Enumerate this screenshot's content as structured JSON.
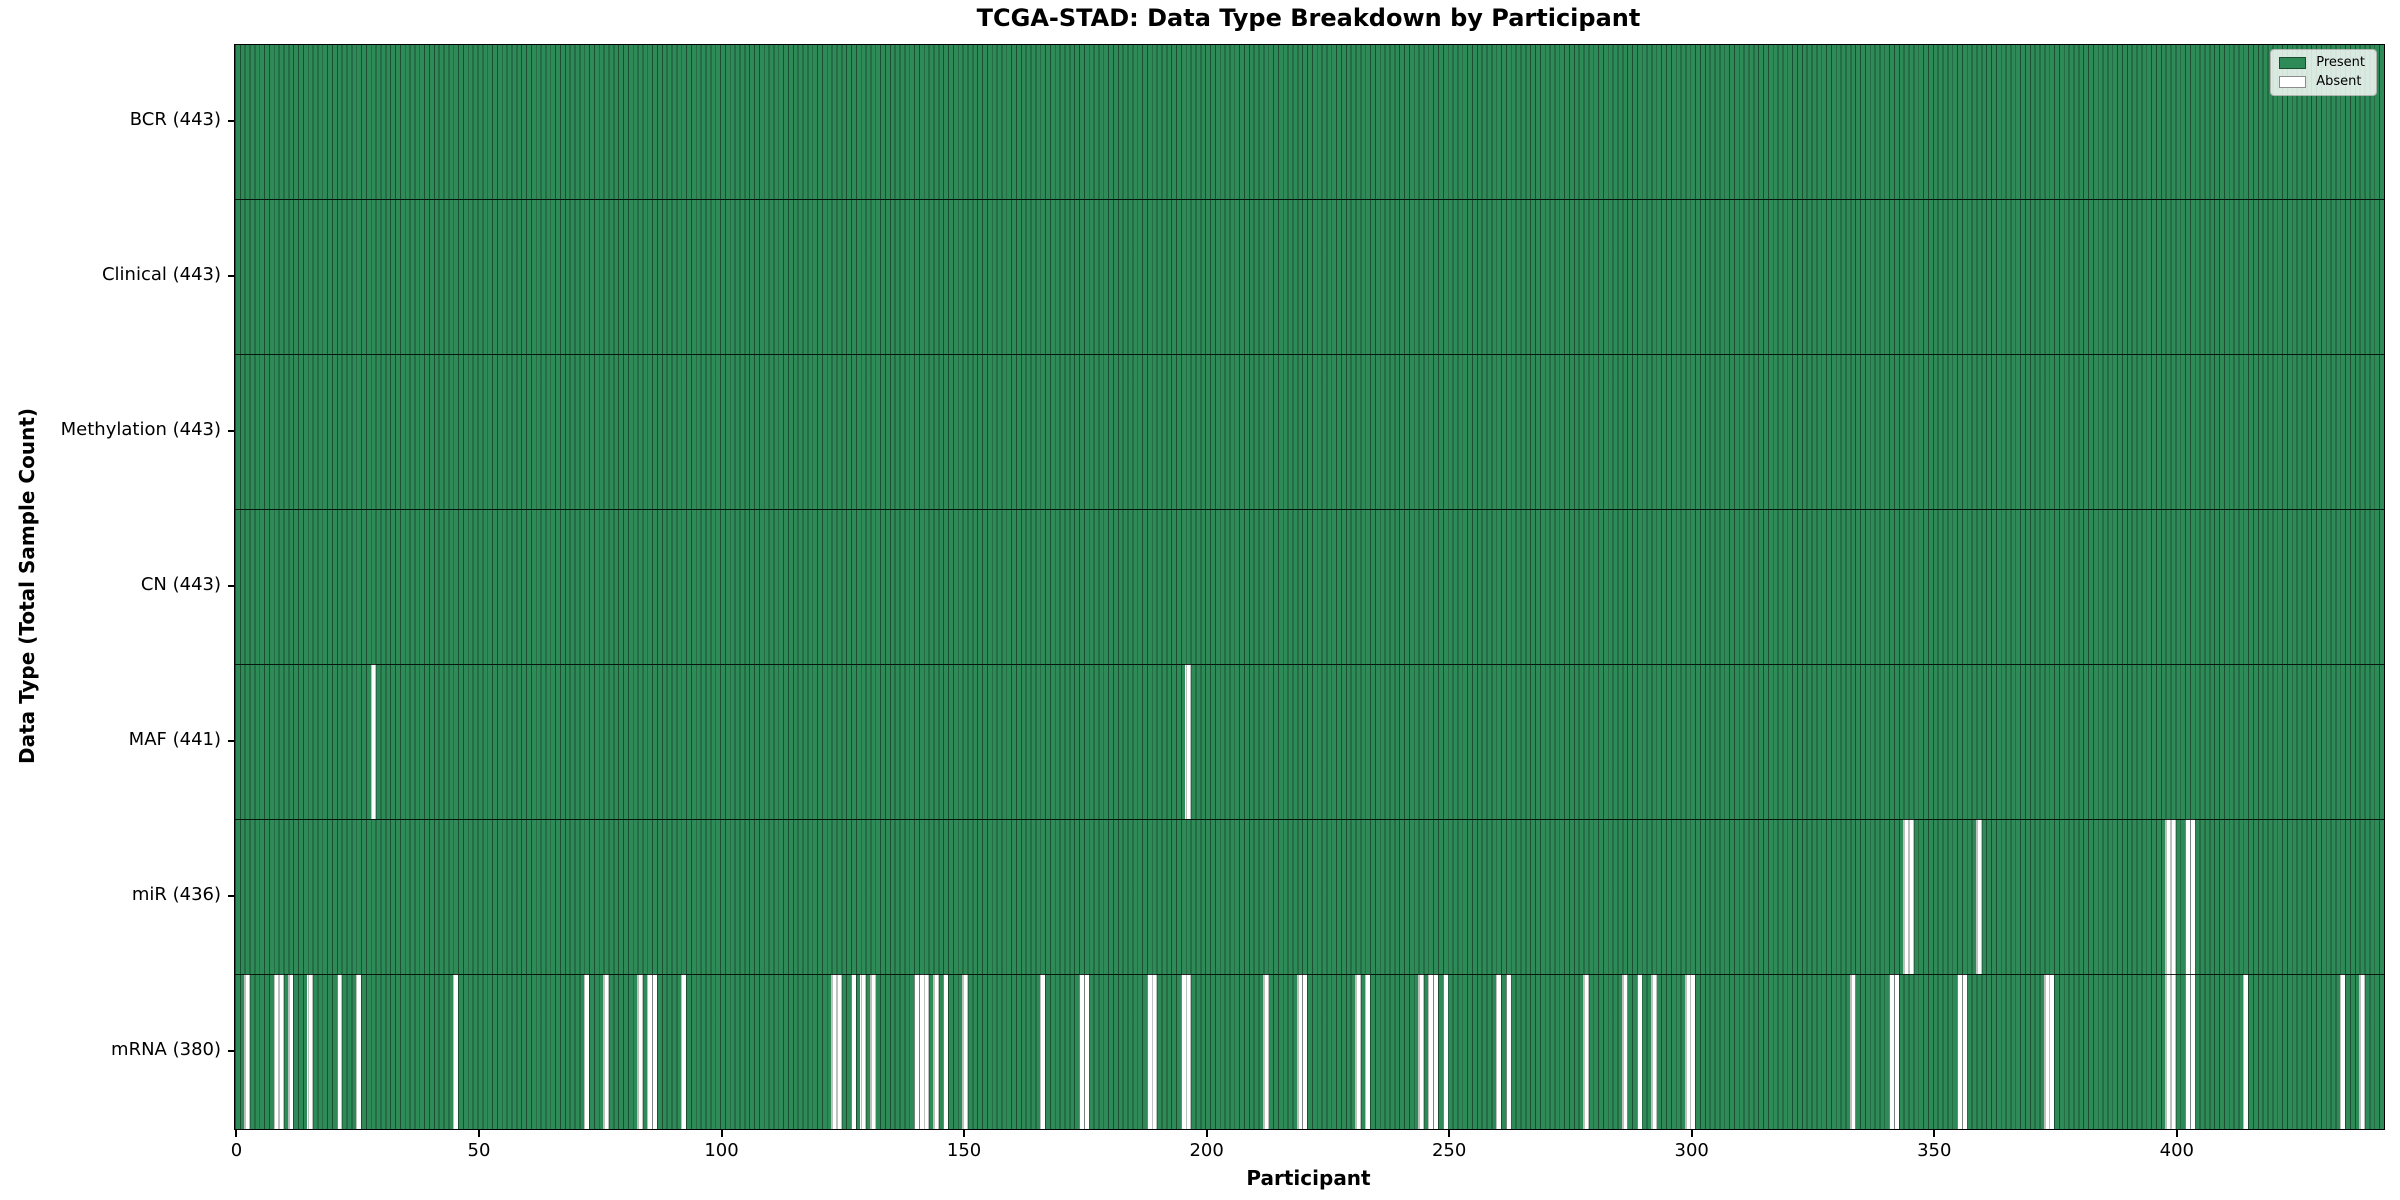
{
  "chart_data": {
    "type": "heatmap",
    "title": "TCGA-STAD: Data Type Breakdown by Participant",
    "xlabel": "Participant",
    "ylabel": "Data Type (Total Sample Count)",
    "x_ticks": [
      0,
      50,
      100,
      150,
      200,
      250,
      300,
      350,
      400
    ],
    "x_range": [
      0,
      443
    ],
    "n_participants": 443,
    "grid": false,
    "legend_position": "upper right",
    "legend": [
      {
        "label": "Present",
        "color": "#2e8b57"
      },
      {
        "label": "Absent",
        "color": "#ffffff"
      }
    ],
    "colors": {
      "present": "#2e8b57",
      "absent": "#ffffff",
      "bar_edge": "rgba(10,30,20,0.55)",
      "row_separator": "rgba(0,0,0,0.85)",
      "plot_border": "#000000",
      "background": "#ffffff"
    },
    "rows": [
      {
        "name": "BCR",
        "label": "BCR (443)",
        "total": 443,
        "absent_participants": []
      },
      {
        "name": "Clinical",
        "label": "Clinical (443)",
        "total": 443,
        "absent_participants": []
      },
      {
        "name": "Methylation",
        "label": "Methylation (443)",
        "total": 443,
        "absent_participants": []
      },
      {
        "name": "CN",
        "label": "CN (443)",
        "total": 443,
        "absent_participants": []
      },
      {
        "name": "MAF",
        "label": "MAF (441)",
        "total": 441,
        "absent_participants": [
          28,
          196
        ]
      },
      {
        "name": "miR",
        "label": "miR (436)",
        "total": 436,
        "absent_participants": [
          344,
          345,
          359,
          398,
          399,
          402,
          403
        ]
      },
      {
        "name": "mRNA",
        "label": "mRNA (380)",
        "total": 380,
        "absent_participants": [
          2,
          8,
          9,
          11,
          15,
          21,
          25,
          45,
          72,
          76,
          83,
          85,
          86,
          92,
          123,
          124,
          127,
          129,
          131,
          140,
          141,
          142,
          144,
          146,
          150,
          166,
          174,
          175,
          188,
          189,
          195,
          196,
          212,
          219,
          220,
          231,
          233,
          244,
          246,
          247,
          249,
          260,
          262,
          278,
          286,
          289,
          292,
          299,
          300,
          333,
          341,
          342,
          355,
          356,
          373,
          374,
          398,
          399,
          402,
          403,
          414,
          434,
          438
        ]
      }
    ]
  }
}
